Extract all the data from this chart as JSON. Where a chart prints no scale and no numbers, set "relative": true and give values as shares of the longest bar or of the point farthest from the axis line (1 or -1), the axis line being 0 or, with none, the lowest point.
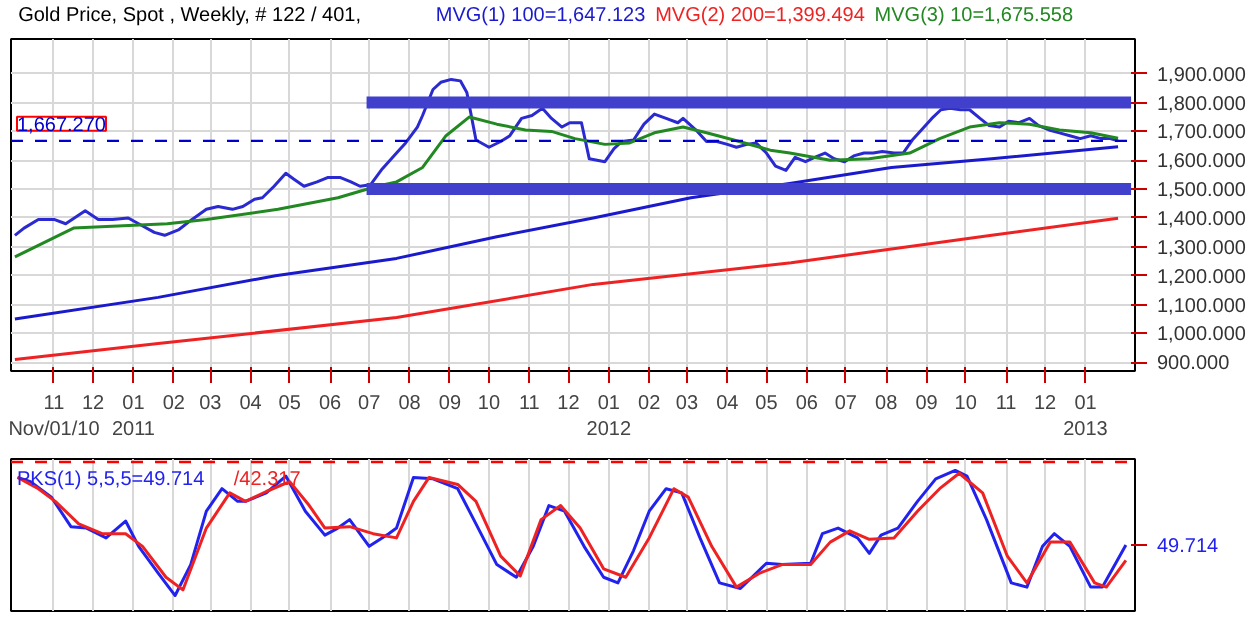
{
  "chart_data": [
    {
      "type": "line",
      "title": "Gold Price, Spot , Weekly, # 122 / 401,",
      "grid": true,
      "xlim": [
        "2010-09-29",
        "2013-02-08"
      ],
      "xticks": [
        {
          "value": "2010-11-01",
          "label": "11\nNov/01/10"
        },
        {
          "value": "2010-12-01",
          "label": "12"
        },
        {
          "value": "2011-01-01",
          "label": "01\n2011"
        },
        {
          "value": "2011-02-01",
          "label": "02"
        },
        {
          "value": "2011-03-01",
          "label": "03"
        },
        {
          "value": "2011-04-01",
          "label": "04"
        },
        {
          "value": "2011-05-01",
          "label": "05"
        },
        {
          "value": "2011-06-01",
          "label": "06"
        },
        {
          "value": "2011-07-01",
          "label": "07"
        },
        {
          "value": "2011-08-01",
          "label": "08"
        },
        {
          "value": "2011-09-01",
          "label": "09"
        },
        {
          "value": "2011-10-01",
          "label": "10"
        },
        {
          "value": "2011-11-01",
          "label": "11"
        },
        {
          "value": "2011-12-01",
          "label": "12"
        },
        {
          "value": "2012-01-01",
          "label": "01\n2012"
        },
        {
          "value": "2012-02-01",
          "label": "02"
        },
        {
          "value": "2012-03-01",
          "label": "03"
        },
        {
          "value": "2012-04-01",
          "label": "04"
        },
        {
          "value": "2012-05-01",
          "label": "05"
        },
        {
          "value": "2012-06-01",
          "label": "06"
        },
        {
          "value": "2012-07-01",
          "label": "07"
        },
        {
          "value": "2012-08-01",
          "label": "08"
        },
        {
          "value": "2012-09-01",
          "label": "09"
        },
        {
          "value": "2012-10-01",
          "label": "10"
        },
        {
          "value": "2012-11-01",
          "label": "11"
        },
        {
          "value": "2012-12-01",
          "label": "12"
        },
        {
          "value": "2013-01-01",
          "label": "01\n2013"
        }
      ],
      "ylim": [
        870,
        2020
      ],
      "yticks": [
        {
          "value": 900,
          "label": "900.000"
        },
        {
          "value": 1000,
          "label": "1,000.000"
        },
        {
          "value": 1100,
          "label": "1,100.000"
        },
        {
          "value": 1200,
          "label": "1,200.000"
        },
        {
          "value": 1300,
          "label": "1,300.000"
        },
        {
          "value": 1400,
          "label": "1,400.000"
        },
        {
          "value": 1500,
          "label": "1,500.000"
        },
        {
          "value": 1600,
          "label": "1,600.000"
        },
        {
          "value": 1700,
          "label": "1,700.000"
        },
        {
          "value": 1800,
          "label": "1,800.000"
        },
        {
          "value": 1900,
          "label": "1,900.000"
        }
      ],
      "ref_lines": [
        {
          "axis": "y",
          "value": 1667.27,
          "label": "1,667.270",
          "color": "#0000cc",
          "line_style": "dashed"
        }
      ],
      "series": [
        {
          "color": "#2a2ad0",
          "x": [
            "2010-10-02",
            "2010-10-09",
            "2010-10-20",
            "2010-11-01",
            "2010-11-10",
            "2010-11-25",
            "2010-12-05",
            "2010-12-16",
            "2010-12-28",
            "2011-01-05",
            "2011-01-17",
            "2011-01-25",
            "2011-02-05",
            "2011-02-15",
            "2011-02-26",
            "2011-03-07",
            "2011-03-18",
            "2011-03-26",
            "2011-04-04",
            "2011-04-10",
            "2011-04-19",
            "2011-04-28",
            "2011-05-04",
            "2011-05-12",
            "2011-05-22",
            "2011-05-30",
            "2011-06-09",
            "2011-06-17",
            "2011-06-24",
            "2011-07-02",
            "2011-07-11",
            "2011-07-22",
            "2011-07-29",
            "2011-08-07",
            "2011-08-11",
            "2011-08-19",
            "2011-08-25",
            "2011-09-02",
            "2011-09-09",
            "2011-09-14",
            "2011-09-21",
            "2011-10-01",
            "2011-10-10",
            "2011-10-17",
            "2011-10-26",
            "2011-11-03",
            "2011-11-11",
            "2011-11-18",
            "2011-11-26",
            "2011-12-02",
            "2011-12-11",
            "2011-12-17",
            "2011-12-29",
            "2012-01-05",
            "2012-01-11",
            "2012-01-20",
            "2012-01-28",
            "2012-02-05",
            "2012-02-14",
            "2012-02-23",
            "2012-02-27",
            "2012-03-09",
            "2012-03-16",
            "2012-03-24",
            "2012-04-01",
            "2012-04-08",
            "2012-04-16",
            "2012-04-23",
            "2012-05-01",
            "2012-05-08",
            "2012-05-16",
            "2012-05-23",
            "2012-05-31",
            "2012-06-07",
            "2012-06-15",
            "2012-06-22",
            "2012-06-30",
            "2012-07-07",
            "2012-07-15",
            "2012-07-22",
            "2012-07-29",
            "2012-08-07",
            "2012-08-14",
            "2012-08-21",
            "2012-08-28",
            "2012-09-05",
            "2012-09-12",
            "2012-09-19",
            "2012-09-27",
            "2012-10-04",
            "2012-10-12",
            "2012-10-19",
            "2012-10-27",
            "2012-11-03",
            "2012-11-11",
            "2012-11-19",
            "2012-11-26",
            "2012-12-04",
            "2012-12-12",
            "2012-12-20",
            "2012-12-28",
            "2013-01-05",
            "2013-01-13",
            "2013-01-20",
            "2013-01-26"
          ],
          "values": [
            1340,
            1365,
            1395,
            1395,
            1380,
            1425,
            1395,
            1395,
            1400,
            1380,
            1350,
            1340,
            1360,
            1395,
            1430,
            1440,
            1430,
            1440,
            1465,
            1470,
            1510,
            1555,
            1535,
            1510,
            1525,
            1540,
            1540,
            1525,
            1510,
            1515,
            1570,
            1625,
            1660,
            1715,
            1755,
            1845,
            1870,
            1880,
            1875,
            1835,
            1670,
            1645,
            1665,
            1685,
            1745,
            1755,
            1780,
            1745,
            1715,
            1730,
            1730,
            1605,
            1595,
            1640,
            1665,
            1670,
            1725,
            1760,
            1745,
            1730,
            1745,
            1700,
            1665,
            1665,
            1655,
            1645,
            1655,
            1660,
            1625,
            1580,
            1565,
            1610,
            1595,
            1610,
            1625,
            1605,
            1595,
            1615,
            1625,
            1625,
            1630,
            1625,
            1625,
            1670,
            1705,
            1745,
            1775,
            1780,
            1775,
            1775,
            1745,
            1720,
            1715,
            1735,
            1730,
            1745,
            1720,
            1705,
            1695,
            1685,
            1675,
            1685,
            1675,
            1675,
            1667
          ]
        },
        {
          "name": "MVG(1) 100=1,647.123",
          "color": "#1a1acc",
          "x": [
            "2010-10-02",
            "2011-01-20",
            "2011-04-20",
            "2011-07-22",
            "2011-10-07",
            "2011-12-20",
            "2012-03-04",
            "2012-05-20",
            "2012-08-05",
            "2012-10-21",
            "2013-01-26"
          ],
          "values": [
            1050,
            1125,
            1200,
            1260,
            1335,
            1400,
            1470,
            1520,
            1575,
            1605,
            1647
          ]
        },
        {
          "name": "MVG(2) 200=1,399.494",
          "color": "#ee2222",
          "x": [
            "2010-10-02",
            "2011-01-20",
            "2011-07-22",
            "2011-12-20",
            "2012-05-20",
            "2012-10-21",
            "2013-01-26"
          ],
          "values": [
            910,
            965,
            1055,
            1170,
            1245,
            1340,
            1399
          ]
        },
        {
          "name": "MVG(3) 10=1,675.558",
          "color": "#228822",
          "x": [
            "2010-10-02",
            "2010-11-16",
            "2011-01-27",
            "2011-02-26",
            "2011-04-22",
            "2011-06-07",
            "2011-07-07",
            "2011-07-22",
            "2011-08-11",
            "2011-08-29",
            "2011-09-16",
            "2011-10-07",
            "2011-10-29",
            "2011-11-18",
            "2011-12-06",
            "2011-12-29",
            "2012-01-17",
            "2012-02-05",
            "2012-02-27",
            "2012-03-16",
            "2012-04-06",
            "2012-05-04",
            "2012-05-19",
            "2012-06-19",
            "2012-07-19",
            "2012-08-19",
            "2012-09-11",
            "2012-10-04",
            "2012-10-27",
            "2012-11-19",
            "2012-12-12",
            "2013-01-05",
            "2013-01-26"
          ],
          "values": [
            1265,
            1365,
            1380,
            1395,
            1430,
            1470,
            1510,
            1525,
            1575,
            1685,
            1750,
            1725,
            1705,
            1700,
            1675,
            1655,
            1660,
            1695,
            1715,
            1695,
            1670,
            1635,
            1625,
            1600,
            1605,
            1625,
            1675,
            1715,
            1730,
            1725,
            1705,
            1695,
            1676
          ]
        },
        {
          "color": "#4040cc",
          "x": [
            "2011-06-29",
            "2013-02-05"
          ],
          "values": [
            1800,
            1800
          ]
        },
        {
          "color": "#4040cc",
          "x": [
            "2011-06-29",
            "2013-02-05"
          ],
          "values": [
            1500,
            1500
          ]
        }
      ]
    },
    {
      "type": "line",
      "relative": true,
      "tick_labels": false,
      "grid": "x",
      "xlim": [
        "2010-09-29",
        "2013-02-08"
      ],
      "xticks": [
        "2010-11-01",
        "2010-12-01",
        "2011-01-01",
        "2011-02-01",
        "2011-03-01",
        "2011-04-01",
        "2011-05-01",
        "2011-06-01",
        "2011-07-01",
        "2011-08-01",
        "2011-09-01",
        "2011-10-01",
        "2011-11-01",
        "2011-12-01",
        "2012-01-01",
        "2012-02-01",
        "2012-03-01",
        "2012-04-01",
        "2012-05-01",
        "2012-06-01",
        "2012-07-01",
        "2012-08-01",
        "2012-09-01",
        "2012-10-01",
        "2012-11-01",
        "2012-12-01",
        "2013-01-01"
      ],
      "ref_lines": [
        {
          "axis": "y",
          "value": 1.06,
          "color": "#ff0000",
          "line_style": "dashed"
        }
      ],
      "annotations": [
        "49.714"
      ],
      "series": [
        {
          "name": "PKS(1) 5,5,5=49.714",
          "color": "#2222ee",
          "x": [
            "2010-10-04",
            "2010-10-14",
            "2010-10-30",
            "2010-11-14",
            "2010-11-26",
            "2010-12-11",
            "2010-12-26",
            "2011-01-05",
            "2011-01-20",
            "2011-02-02",
            "2011-02-14",
            "2011-02-26",
            "2011-03-10",
            "2011-03-22",
            "2011-03-28",
            "2011-04-13",
            "2011-04-28",
            "2011-05-13",
            "2011-05-28",
            "2011-06-07",
            "2011-06-16",
            "2011-07-01",
            "2011-07-16",
            "2011-07-22",
            "2011-08-04",
            "2011-08-19",
            "2011-09-07",
            "2011-09-21",
            "2011-10-07",
            "2011-10-22",
            "2011-11-04",
            "2011-11-16",
            "2011-11-28",
            "2011-12-13",
            "2011-12-28",
            "2012-01-08",
            "2012-01-20",
            "2012-02-01",
            "2012-02-14",
            "2012-02-26",
            "2012-03-11",
            "2012-03-26",
            "2012-04-11",
            "2012-05-01",
            "2012-05-13",
            "2012-06-04",
            "2012-06-13",
            "2012-06-25",
            "2012-07-10",
            "2012-07-19",
            "2012-07-28",
            "2012-08-10",
            "2012-08-25",
            "2012-09-08",
            "2012-09-23",
            "2012-10-02",
            "2012-10-17",
            "2012-11-05",
            "2012-11-17",
            "2012-11-29",
            "2012-12-08",
            "2012-12-20",
            "2013-01-05",
            "2013-01-14",
            "2013-02-01"
          ],
          "values": [
            0.95,
            0.92,
            0.81,
            0.6,
            0.59,
            0.52,
            0.64,
            0.46,
            0.27,
            0.11,
            0.33,
            0.71,
            0.87,
            0.78,
            0.78,
            0.84,
            0.96,
            0.71,
            0.54,
            0.59,
            0.65,
            0.46,
            0.55,
            0.59,
            0.95,
            0.94,
            0.87,
            0.62,
            0.33,
            0.24,
            0.46,
            0.75,
            0.71,
            0.46,
            0.24,
            0.2,
            0.43,
            0.71,
            0.87,
            0.84,
            0.52,
            0.2,
            0.16,
            0.34,
            0.33,
            0.34,
            0.55,
            0.59,
            0.52,
            0.41,
            0.54,
            0.59,
            0.78,
            0.94,
            1.0,
            0.96,
            0.65,
            0.2,
            0.17,
            0.46,
            0.55,
            0.46,
            0.17,
            0.17,
            0.47
          ]
        },
        {
          "name": "/42.317",
          "color": "#ee2222",
          "x": [
            "2010-10-04",
            "2010-10-20",
            "2010-11-02",
            "2010-11-20",
            "2010-12-08",
            "2010-12-26",
            "2011-01-08",
            "2011-01-26",
            "2011-02-08",
            "2011-02-26",
            "2011-03-16",
            "2011-03-28",
            "2011-04-13",
            "2011-05-01",
            "2011-05-16",
            "2011-05-28",
            "2011-06-16",
            "2011-07-04",
            "2011-07-22",
            "2011-08-04",
            "2011-08-16",
            "2011-09-07",
            "2011-09-21",
            "2011-10-10",
            "2011-10-25",
            "2011-11-10",
            "2011-11-25",
            "2011-12-10",
            "2011-12-28",
            "2012-01-14",
            "2012-02-01",
            "2012-02-20",
            "2012-03-02",
            "2012-03-20",
            "2012-04-08",
            "2012-04-26",
            "2012-05-13",
            "2012-06-04",
            "2012-06-19",
            "2012-07-04",
            "2012-07-19",
            "2012-08-07",
            "2012-08-25",
            "2012-09-11",
            "2012-09-26",
            "2012-10-14",
            "2012-11-02",
            "2012-11-17",
            "2012-12-05",
            "2012-12-20",
            "2013-01-08",
            "2013-01-17",
            "2013-02-01"
          ],
          "values": [
            0.95,
            0.87,
            0.78,
            0.62,
            0.55,
            0.55,
            0.46,
            0.24,
            0.15,
            0.59,
            0.84,
            0.78,
            0.85,
            0.92,
            0.75,
            0.59,
            0.6,
            0.55,
            0.52,
            0.78,
            0.95,
            0.9,
            0.78,
            0.39,
            0.25,
            0.65,
            0.75,
            0.59,
            0.3,
            0.24,
            0.52,
            0.87,
            0.81,
            0.46,
            0.17,
            0.27,
            0.33,
            0.33,
            0.49,
            0.57,
            0.51,
            0.52,
            0.71,
            0.87,
            0.98,
            0.84,
            0.39,
            0.2,
            0.49,
            0.49,
            0.2,
            0.17,
            0.36
          ]
        }
      ]
    }
  ]
}
